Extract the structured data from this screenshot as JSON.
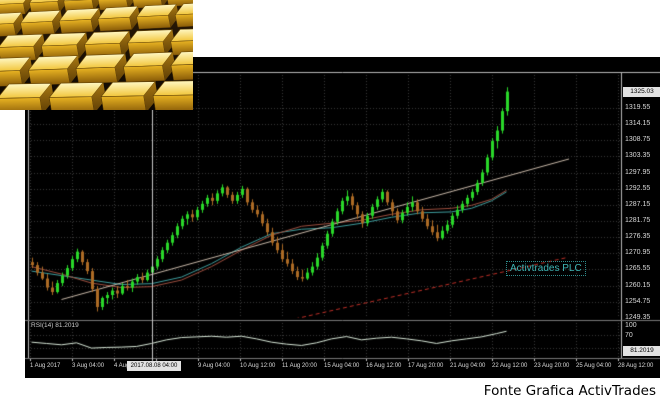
{
  "page": {
    "caption": "Fonte Grafica ActivTrades"
  },
  "gold_image": {
    "alt": "stacked gold bars"
  },
  "chart": {
    "watermark": "Activtrades PLC",
    "indicator_label": "RSI(14) 81.2019",
    "current_price": "1325.03",
    "current_time": "2017.08.08 04:00",
    "rsi_current": "81.2019",
    "colors": {
      "background": "#000000",
      "grid": "#3a3a3a",
      "border": "#b8b8b8",
      "separator": "#787878",
      "bull": "#29d829",
      "bear": "#ad6b25",
      "ma_teal": "#3f9f9f",
      "ma_red": "#a05040",
      "trendline": "#c8b8a8",
      "trend_dashed": "#c03028",
      "rsi_line": "#d8e8d8",
      "crosshair": "#c8c8c8",
      "axis_text": "#d8d8d8",
      "highlight_bg": "#e2e2e2",
      "watermark": "#3fb5b5"
    }
  },
  "chart_data": {
    "type": "candlestick",
    "title": "",
    "price_axis": {
      "current": 1325.03,
      "step": 5.4,
      "gridlines": [
        1319.55,
        1314.15,
        1308.75,
        1303.35,
        1297.95,
        1292.55,
        1287.15,
        1281.75,
        1276.35,
        1270.95,
        1265.55,
        1260.15,
        1254.75,
        1249.35
      ]
    },
    "time_axis": {
      "labels": [
        "1 Aug 2017",
        "3 Aug 04:00",
        "4 Aug 12:00",
        "",
        "9 Aug 04:00",
        "10 Aug 12:00",
        "11 Aug 20:00",
        "15 Aug 04:00",
        "16 Aug 12:00",
        "17 Aug 20:00",
        "21 Aug 04:00",
        "22 Aug 12:00",
        "23 Aug 20:00",
        "25 Aug 04:00",
        "28 Aug 12:00"
      ]
    },
    "crosshair": {
      "index": 24,
      "time": "2017.08.08 04:00"
    },
    "candles": [
      [
        1268,
        1269.5,
        1266,
        1267
      ],
      [
        1267,
        1268,
        1263.5,
        1264.5
      ],
      [
        1264.5,
        1266.5,
        1262,
        1262.5
      ],
      [
        1262.5,
        1264,
        1258.5,
        1259.5
      ],
      [
        1259.5,
        1261.5,
        1257,
        1258
      ],
      [
        1258,
        1262,
        1257.5,
        1261
      ],
      [
        1261,
        1264.5,
        1260,
        1263.5
      ],
      [
        1263.5,
        1267,
        1262.5,
        1266
      ],
      [
        1266,
        1270,
        1265,
        1269
      ],
      [
        1269,
        1272.5,
        1268,
        1271.5
      ],
      [
        1271.5,
        1272,
        1267,
        1268
      ],
      [
        1268,
        1269,
        1264,
        1265
      ],
      [
        1265,
        1266,
        1258,
        1259
      ],
      [
        1259,
        1260,
        1251.5,
        1253
      ],
      [
        1253,
        1256.5,
        1252,
        1256
      ],
      [
        1256,
        1258,
        1254,
        1257
      ],
      [
        1257,
        1259.5,
        1255.5,
        1258.5
      ],
      [
        1258.5,
        1260,
        1256,
        1257.5
      ],
      [
        1257.5,
        1261,
        1257,
        1260
      ],
      [
        1260,
        1262,
        1258.5,
        1259.5
      ],
      [
        1259.5,
        1262.5,
        1258,
        1261.5
      ],
      [
        1261.5,
        1264,
        1260.5,
        1263
      ],
      [
        1263,
        1264.5,
        1261,
        1262
      ],
      [
        1262,
        1265.5,
        1261.5,
        1264.5
      ],
      [
        1264.5,
        1267.5,
        1263.5,
        1266.5
      ],
      [
        1266.5,
        1270,
        1265.5,
        1269
      ],
      [
        1269,
        1273,
        1268,
        1272
      ],
      [
        1272,
        1275.5,
        1271,
        1274.5
      ],
      [
        1274.5,
        1278,
        1273.5,
        1277
      ],
      [
        1277,
        1281,
        1276,
        1280
      ],
      [
        1280,
        1283.5,
        1279,
        1282.5
      ],
      [
        1282.5,
        1285,
        1280.5,
        1284
      ],
      [
        1284,
        1285.5,
        1281.5,
        1283
      ],
      [
        1283,
        1286.5,
        1282,
        1285.5
      ],
      [
        1285.5,
        1288.5,
        1284.5,
        1287.5
      ],
      [
        1287.5,
        1290.5,
        1286.5,
        1289.5
      ],
      [
        1289.5,
        1291,
        1287,
        1288.5
      ],
      [
        1288.5,
        1292,
        1287.5,
        1291
      ],
      [
        1291,
        1294,
        1290,
        1293
      ],
      [
        1293,
        1293.5,
        1289.5,
        1290.5
      ],
      [
        1290.5,
        1291.5,
        1287.5,
        1288.5
      ],
      [
        1288.5,
        1291.5,
        1287.5,
        1290.5
      ],
      [
        1290.5,
        1293.5,
        1289.5,
        1292.5
      ],
      [
        1292.5,
        1293,
        1287,
        1288
      ],
      [
        1288,
        1289,
        1284.5,
        1285.5
      ],
      [
        1285.5,
        1287,
        1283,
        1284
      ],
      [
        1284,
        1285,
        1280,
        1281
      ],
      [
        1281,
        1282.5,
        1277,
        1278
      ],
      [
        1278,
        1279.5,
        1273.5,
        1274.5
      ],
      [
        1274.5,
        1276.5,
        1271,
        1272
      ],
      [
        1272,
        1274,
        1268,
        1269
      ],
      [
        1269,
        1271.5,
        1266.5,
        1267.5
      ],
      [
        1267.5,
        1269,
        1264,
        1265
      ],
      [
        1265,
        1266.5,
        1262,
        1263
      ],
      [
        1263,
        1265.5,
        1261.5,
        1262.5
      ],
      [
        1262.5,
        1266,
        1262,
        1264.5
      ],
      [
        1264.5,
        1268,
        1263.5,
        1266.5
      ],
      [
        1266.5,
        1271,
        1265.5,
        1269.5
      ],
      [
        1269.5,
        1274.5,
        1268.5,
        1273.5
      ],
      [
        1273.5,
        1278.5,
        1272.5,
        1277.5
      ],
      [
        1277.5,
        1282.5,
        1276.5,
        1281.5
      ],
      [
        1281.5,
        1286,
        1280.5,
        1285
      ],
      [
        1285,
        1289.5,
        1284,
        1288.5
      ],
      [
        1288.5,
        1292,
        1287,
        1290
      ],
      [
        1290,
        1291,
        1285.5,
        1287
      ],
      [
        1287,
        1288,
        1282.5,
        1284
      ],
      [
        1284,
        1285,
        1279.5,
        1281
      ],
      [
        1281,
        1284.5,
        1280,
        1283.5
      ],
      [
        1283.5,
        1287.5,
        1282.5,
        1286.5
      ],
      [
        1286.5,
        1290,
        1285.5,
        1289
      ],
      [
        1289,
        1292.5,
        1288,
        1291.5
      ],
      [
        1291.5,
        1292,
        1287,
        1288
      ],
      [
        1288,
        1289,
        1283.5,
        1285
      ],
      [
        1285,
        1286,
        1281,
        1282
      ],
      [
        1282,
        1285.5,
        1281,
        1284.5
      ],
      [
        1284.5,
        1288,
        1283.5,
        1286.5
      ],
      [
        1286.5,
        1290,
        1285,
        1288
      ],
      [
        1288,
        1289,
        1284,
        1285
      ],
      [
        1285,
        1286.5,
        1281.5,
        1282.5
      ],
      [
        1282.5,
        1284,
        1279,
        1280
      ],
      [
        1280,
        1282,
        1277,
        1278
      ],
      [
        1278,
        1280.5,
        1275,
        1276
      ],
      [
        1276,
        1280,
        1275.5,
        1278.5
      ],
      [
        1278.5,
        1282,
        1277.5,
        1280.5
      ],
      [
        1280.5,
        1284.5,
        1279.5,
        1283.5
      ],
      [
        1283.5,
        1287,
        1282.5,
        1285.5
      ],
      [
        1285.5,
        1288.5,
        1284.5,
        1287.5
      ],
      [
        1287.5,
        1290.5,
        1286.5,
        1289.5
      ],
      [
        1289.5,
        1292.5,
        1288.5,
        1291.5
      ],
      [
        1291.5,
        1295.5,
        1290.5,
        1294.5
      ],
      [
        1294.5,
        1299,
        1293.5,
        1298
      ],
      [
        1298,
        1304,
        1297,
        1303
      ],
      [
        1303,
        1309.5,
        1302,
        1308.5
      ],
      [
        1308.5,
        1313.5,
        1306,
        1312
      ],
      [
        1312,
        1319.5,
        1311,
        1318.5
      ],
      [
        1318.5,
        1326.5,
        1317,
        1325.03
      ]
    ],
    "overlays": [
      {
        "name": "ma-teal",
        "type": "line",
        "points": [
          [
            0,
            1265
          ],
          [
            6,
            1263.5
          ],
          [
            12,
            1262
          ],
          [
            18,
            1260.5
          ],
          [
            24,
            1260.8
          ],
          [
            30,
            1263
          ],
          [
            36,
            1267.5
          ],
          [
            42,
            1273
          ],
          [
            48,
            1277.5
          ],
          [
            54,
            1279
          ],
          [
            60,
            1279.5
          ],
          [
            66,
            1281
          ],
          [
            72,
            1283
          ],
          [
            78,
            1284.5
          ],
          [
            84,
            1284.8
          ],
          [
            88,
            1286
          ],
          [
            92,
            1288.5
          ],
          [
            95,
            1291.5
          ]
        ]
      },
      {
        "name": "ma-red",
        "type": "line",
        "points": [
          [
            0,
            1266.5
          ],
          [
            6,
            1264
          ],
          [
            12,
            1261
          ],
          [
            18,
            1259.5
          ],
          [
            24,
            1259.8
          ],
          [
            30,
            1262
          ],
          [
            36,
            1266.5
          ],
          [
            42,
            1272
          ],
          [
            48,
            1277
          ],
          [
            54,
            1280
          ],
          [
            60,
            1281
          ],
          [
            66,
            1282
          ],
          [
            72,
            1284
          ],
          [
            78,
            1285.5
          ],
          [
            84,
            1286
          ],
          [
            88,
            1287
          ],
          [
            92,
            1289
          ],
          [
            95,
            1292
          ]
        ]
      },
      {
        "name": "trendline",
        "type": "line",
        "points": [
          [
            6,
            1255.5
          ],
          [
            107.5,
            1302.5
          ]
        ]
      },
      {
        "name": "trendline-dashed",
        "type": "dashed",
        "points": [
          [
            50,
            1248
          ],
          [
            107,
            1269.5
          ]
        ]
      }
    ],
    "indicator": {
      "name": "RSI(14)",
      "current": 81.2019,
      "range": [
        0,
        100
      ],
      "levels": [
        70,
        30
      ],
      "axis_labels": [
        100,
        70,
        0
      ],
      "points": [
        [
          0,
          48
        ],
        [
          3,
          44
        ],
        [
          6,
          40
        ],
        [
          9,
          46
        ],
        [
          12,
          30
        ],
        [
          15,
          32
        ],
        [
          18,
          33
        ],
        [
          21,
          35
        ],
        [
          24,
          44
        ],
        [
          27,
          55
        ],
        [
          30,
          62
        ],
        [
          33,
          64
        ],
        [
          36,
          66
        ],
        [
          39,
          63
        ],
        [
          42,
          66
        ],
        [
          45,
          58
        ],
        [
          48,
          48
        ],
        [
          51,
          42
        ],
        [
          54,
          38
        ],
        [
          57,
          46
        ],
        [
          60,
          58
        ],
        [
          63,
          65
        ],
        [
          66,
          55
        ],
        [
          69,
          60
        ],
        [
          72,
          63
        ],
        [
          75,
          58
        ],
        [
          78,
          52
        ],
        [
          81,
          44
        ],
        [
          84,
          52
        ],
        [
          87,
          58
        ],
        [
          90,
          64
        ],
        [
          93,
          74
        ],
        [
          95,
          81
        ]
      ]
    }
  }
}
